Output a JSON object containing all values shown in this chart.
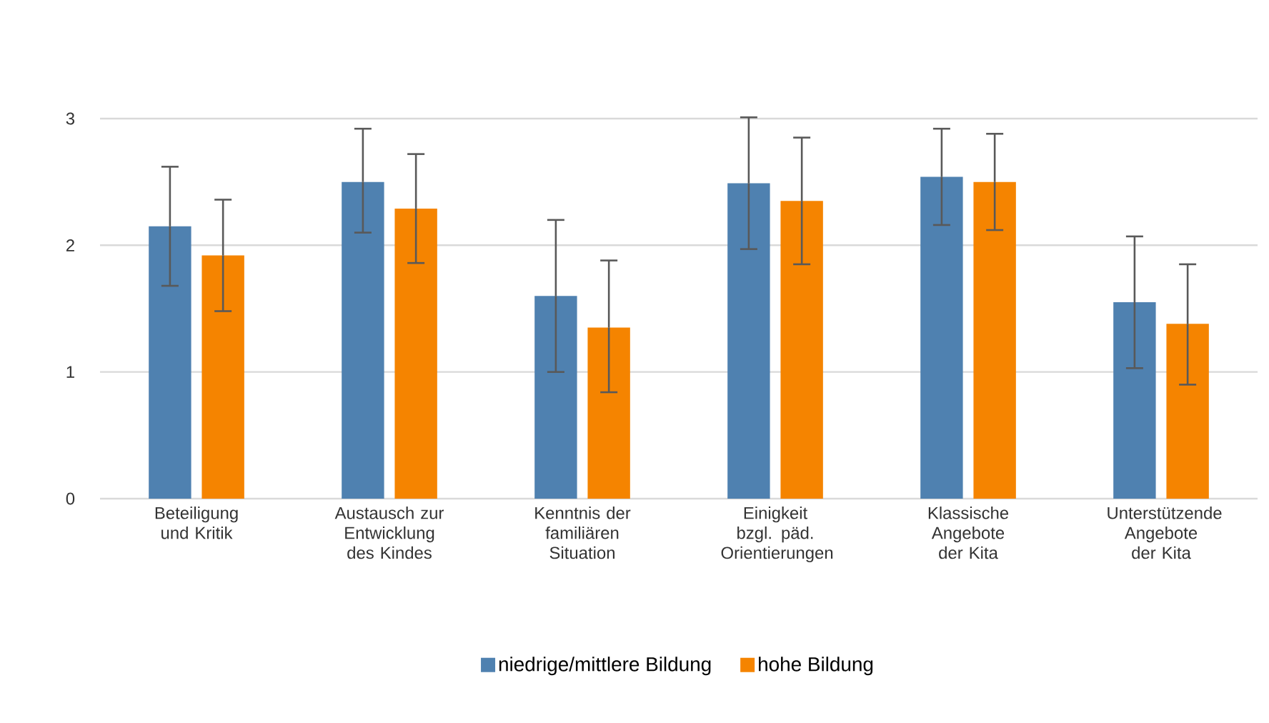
{
  "chart_data": {
    "type": "bar",
    "categories": [
      "Beteiligung und Kritik",
      "Austausch zur Entwicklung des Kindes",
      "Kenntnis der familiären Situation",
      "Einigkeit bzgl. päd. Orientierungen",
      "Klassische Angebote der Kita",
      "Unterstützende Angebote der Kita"
    ],
    "series": [
      {
        "name": "niedrige/mittlere Bildung",
        "color": "#4f81b0",
        "values": [
          2.15,
          2.5,
          1.6,
          2.49,
          2.54,
          1.55
        ],
        "errors": [
          [
            1.68,
            2.62
          ],
          [
            2.1,
            2.92
          ],
          [
            1.0,
            2.2
          ],
          [
            1.97,
            3.01
          ],
          [
            2.16,
            2.92
          ],
          [
            1.03,
            2.07
          ]
        ]
      },
      {
        "name": "hohe Bildung",
        "color": "#f58400",
        "values": [
          1.92,
          2.29,
          1.35,
          2.35,
          2.5,
          1.38
        ],
        "errors": [
          [
            1.48,
            2.36
          ],
          [
            1.86,
            2.72
          ],
          [
            0.84,
            1.88
          ],
          [
            1.85,
            2.85
          ],
          [
            2.12,
            2.88
          ],
          [
            0.9,
            1.85
          ]
        ]
      }
    ],
    "ylim": [
      0,
      3
    ],
    "yticks": [
      0,
      1,
      2,
      3
    ],
    "grid": "y",
    "legend": "bottom"
  }
}
